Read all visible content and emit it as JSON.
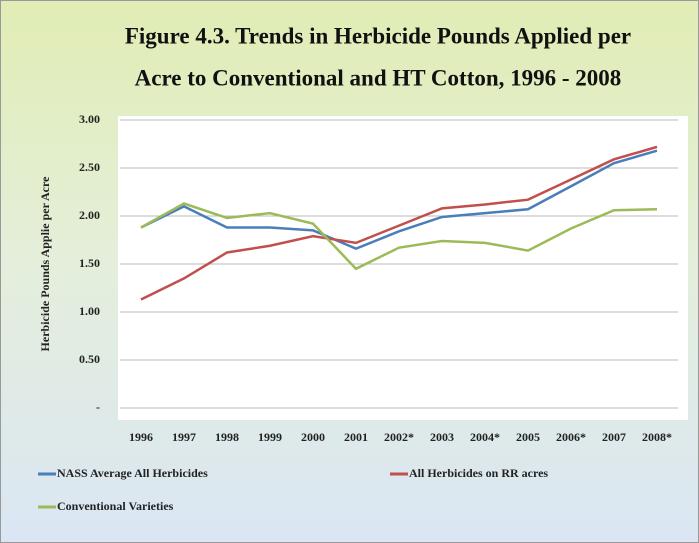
{
  "chart_data": {
    "type": "line",
    "title": "Figure 4.3.  Trends in Herbicide Pounds Applied per Acre to Conventional and HT Cotton, 1996 - 2008",
    "y_label": "Herbicide Pounds Applie per Acre",
    "categories": [
      "1996",
      "1997",
      "1998",
      "1999",
      "2000",
      "2001",
      "2002*",
      "2003",
      "2004*",
      "2005",
      "2006*",
      "2007",
      "2008*"
    ],
    "series": [
      {
        "name": "NASS Average All Herbicides",
        "color": "#4a7ebb",
        "values": [
          1.88,
          2.1,
          1.88,
          1.88,
          1.85,
          1.66,
          1.84,
          1.99,
          2.03,
          2.07,
          2.31,
          2.55,
          2.68
        ]
      },
      {
        "name": "All Herbicides on RR acres",
        "color": "#c0504d",
        "values": [
          1.13,
          1.35,
          1.62,
          1.69,
          1.79,
          1.72,
          1.9,
          2.08,
          2.12,
          2.17,
          2.38,
          2.59,
          2.72
        ]
      },
      {
        "name": "Conventional Varieties",
        "color": "#9bbb59",
        "values": [
          1.88,
          2.13,
          1.98,
          2.03,
          1.92,
          1.45,
          1.67,
          1.74,
          1.72,
          1.64,
          1.87,
          2.06,
          2.07
        ]
      }
    ],
    "ylim": [
      0,
      3
    ],
    "yticks": [
      {
        "value": 0,
        "label": "-"
      },
      {
        "value": 0.5,
        "label": "0.50"
      },
      {
        "value": 1,
        "label": "1.00"
      },
      {
        "value": 1.5,
        "label": "1.50"
      },
      {
        "value": 2,
        "label": "2.00"
      },
      {
        "value": 2.5,
        "label": "2.50"
      },
      {
        "value": 3,
        "label": "3.00"
      }
    ],
    "grid": true,
    "legend": "bottom"
  }
}
